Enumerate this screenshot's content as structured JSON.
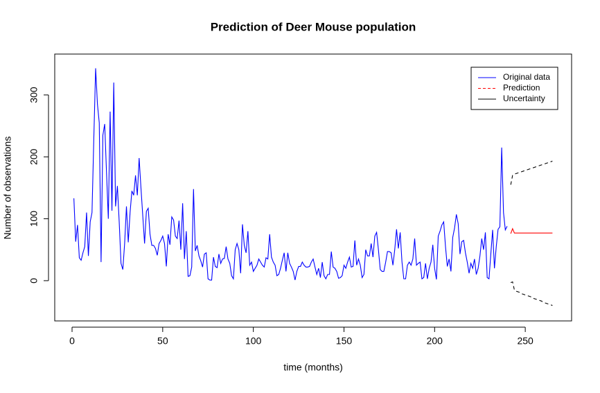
{
  "chart_data": {
    "type": "line",
    "title": "Prediction of Deer Mouse population",
    "x_label": "time (months)",
    "y_label": "Number of observations",
    "xlim": [
      -9.56,
      275.56
    ],
    "ylim": [
      -65,
      366
    ],
    "xticks": [
      0,
      50,
      100,
      150,
      200,
      250
    ],
    "yticks": [
      0,
      100,
      200,
      300
    ],
    "legend_position": "topright",
    "series": [
      {
        "name": "Original data",
        "color": "#0000ff",
        "dash": false,
        "legend_dash": false,
        "x": [
          1,
          2,
          3,
          4,
          5,
          6,
          7,
          8,
          9,
          10,
          11,
          12,
          13,
          14,
          15,
          16,
          17,
          18,
          19,
          20,
          21,
          22,
          23,
          24,
          25,
          26,
          27,
          28,
          29,
          30,
          31,
          32,
          33,
          34,
          35,
          36,
          37,
          38,
          39,
          40,
          41,
          42,
          43,
          44,
          45,
          46,
          47,
          48,
          49,
          50,
          51,
          52,
          53,
          54,
          55,
          56,
          57,
          58,
          59,
          60,
          61,
          62,
          63,
          64,
          65,
          66,
          67,
          68,
          69,
          70,
          71,
          72,
          73,
          74,
          75,
          76,
          77,
          78,
          79,
          80,
          81,
          82,
          83,
          84,
          85,
          86,
          87,
          88,
          89,
          90,
          91,
          92,
          93,
          94,
          95,
          96,
          97,
          98,
          99,
          100,
          101,
          102,
          103,
          104,
          105,
          106,
          107,
          108,
          109,
          110,
          111,
          112,
          113,
          114,
          115,
          116,
          117,
          118,
          119,
          120,
          121,
          122,
          123,
          124,
          125,
          126,
          127,
          128,
          129,
          130,
          131,
          132,
          133,
          134,
          135,
          136,
          137,
          138,
          139,
          140,
          141,
          142,
          143,
          144,
          145,
          146,
          147,
          148,
          149,
          150,
          151,
          152,
          153,
          154,
          155,
          156,
          157,
          158,
          159,
          160,
          161,
          162,
          163,
          164,
          165,
          166,
          167,
          168,
          169,
          170,
          171,
          172,
          173,
          174,
          175,
          176,
          177,
          178,
          179,
          180,
          181,
          182,
          183,
          184,
          185,
          186,
          187,
          188,
          189,
          190,
          191,
          192,
          193,
          194,
          195,
          196,
          197,
          198,
          199,
          200,
          201,
          202,
          203,
          204,
          205,
          206,
          207,
          208,
          209,
          210,
          211,
          212,
          213,
          214,
          215,
          216,
          217,
          218,
          219,
          220,
          221,
          222,
          223,
          224,
          225,
          226,
          227,
          228,
          229,
          230,
          231,
          232,
          233,
          234,
          235,
          236,
          237,
          238,
          239,
          240
        ],
        "values": [
          133,
          63,
          90,
          37,
          33,
          45,
          55,
          110,
          40,
          95,
          110,
          230,
          343,
          285,
          255,
          30,
          235,
          253,
          175,
          100,
          273,
          113,
          320,
          120,
          153,
          95,
          28,
          18,
          60,
          120,
          62,
          110,
          145,
          138,
          170,
          138,
          198,
          150,
          105,
          60,
          112,
          117,
          75,
          57,
          57,
          52,
          41,
          60,
          65,
          72,
          60,
          23,
          75,
          58,
          103,
          98,
          72,
          68,
          97,
          50,
          125,
          35,
          80,
          7,
          8,
          22,
          148,
          48,
          57,
          40,
          32,
          22,
          43,
          45,
          3,
          1,
          1,
          38,
          23,
          21,
          43,
          28,
          35,
          36,
          55,
          35,
          28,
          8,
          3,
          50,
          60,
          50,
          12,
          91,
          57,
          45,
          80,
          25,
          30,
          15,
          20,
          25,
          35,
          30,
          25,
          22,
          37,
          35,
          75,
          38,
          30,
          25,
          8,
          10,
          20,
          33,
          45,
          15,
          45,
          28,
          22,
          15,
          1,
          15,
          23,
          23,
          30,
          25,
          22,
          22,
          23,
          30,
          35,
          22,
          10,
          20,
          5,
          30,
          8,
          3,
          10,
          10,
          47,
          22,
          20,
          15,
          4,
          5,
          8,
          25,
          20,
          30,
          38,
          22,
          23,
          65,
          25,
          35,
          25,
          5,
          10,
          50,
          40,
          40,
          60,
          38,
          72,
          78,
          50,
          18,
          15,
          15,
          30,
          47,
          47,
          45,
          25,
          50,
          83,
          52,
          78,
          30,
          3,
          3,
          25,
          30,
          25,
          35,
          68,
          25,
          28,
          30,
          3,
          5,
          28,
          3,
          20,
          30,
          58,
          20,
          2,
          72,
          80,
          90,
          95,
          55,
          23,
          35,
          15,
          70,
          85,
          107,
          92,
          43,
          63,
          65,
          45,
          30,
          12,
          28,
          20,
          35,
          10,
          20,
          40,
          68,
          50,
          78,
          5,
          3,
          43,
          82,
          20,
          55,
          83,
          87,
          215,
          110,
          82,
          88
        ]
      },
      {
        "name": "Prediction",
        "color": "#ff0000",
        "dash": false,
        "legend_dash": true,
        "x": [
          242,
          243,
          244,
          245,
          246,
          247,
          248,
          249,
          250,
          251,
          252,
          253,
          254,
          255,
          256,
          257,
          258,
          259,
          260,
          261,
          262,
          263,
          264,
          265
        ],
        "values": [
          76,
          84,
          77,
          77,
          77,
          77,
          77,
          77,
          77,
          77,
          77,
          77,
          77,
          77,
          77,
          77,
          77,
          77,
          77,
          77,
          77,
          77,
          77,
          77
        ]
      },
      {
        "name": "Uncertainty",
        "color": "#000000",
        "dash": true,
        "legend_dash": false,
        "x": [
          242,
          243,
          244,
          245,
          246,
          247,
          248,
          249,
          250,
          251,
          252,
          253,
          254,
          255,
          256,
          257,
          258,
          259,
          260,
          261,
          262,
          263,
          264,
          265
        ],
        "values": [
          155,
          170,
          172,
          173,
          174,
          175,
          176,
          177,
          178,
          179,
          180,
          181,
          182,
          183,
          184,
          185,
          186,
          187,
          188,
          189,
          190,
          191,
          192,
          193
        ],
        "lower": [
          -3,
          -2,
          -15,
          -17,
          -18,
          -19,
          -21,
          -22,
          -23,
          -24,
          -25,
          -26,
          -28,
          -29,
          -30,
          -31,
          -32,
          -33,
          -35,
          -36,
          -37,
          -38,
          -39,
          -40
        ]
      }
    ]
  }
}
